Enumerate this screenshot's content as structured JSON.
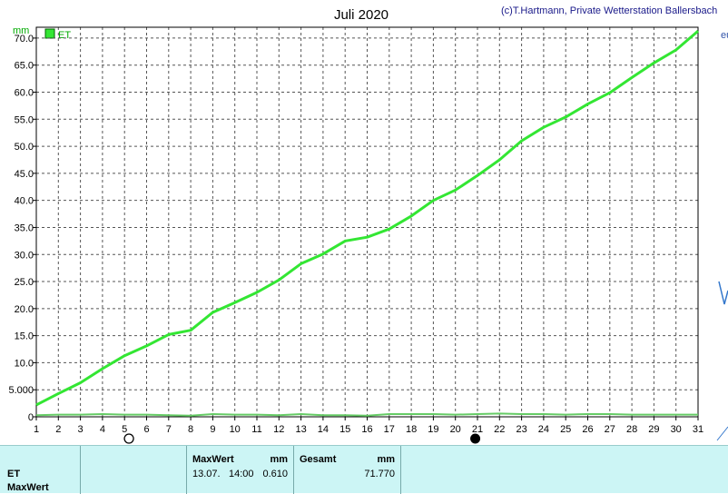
{
  "title": "Juli 2020",
  "copyright": "(c)T.Hartmann, Private Wetterstation Ballersbach",
  "colors": {
    "series": "#33e633",
    "low_series": "#66cc66",
    "axis_unit": "#00aa00",
    "footer_bg": "#ccf5f5"
  },
  "chart_data": {
    "type": "line",
    "title": "Juli 2020",
    "ylabel": "mm",
    "ylim": [
      0,
      72
    ],
    "xlim": [
      1,
      31
    ],
    "grid": true,
    "legend": {
      "entries": [
        "ET"
      ],
      "placement": "top-left"
    },
    "y_ticks": [
      {
        "v": 0,
        "label": "0"
      },
      {
        "v": 5,
        "label": "5.000"
      },
      {
        "v": 10,
        "label": "10.0"
      },
      {
        "v": 15,
        "label": "15.0"
      },
      {
        "v": 20,
        "label": "20.0"
      },
      {
        "v": 25,
        "label": "25.0"
      },
      {
        "v": 30,
        "label": "30.0"
      },
      {
        "v": 35,
        "label": "35.0"
      },
      {
        "v": 40,
        "label": "40.0"
      },
      {
        "v": 45,
        "label": "45.0"
      },
      {
        "v": 50,
        "label": "50.0"
      },
      {
        "v": 55,
        "label": "55.0"
      },
      {
        "v": 60,
        "label": "60.0"
      },
      {
        "v": 65,
        "label": "65.0"
      },
      {
        "v": 70,
        "label": "70.0"
      }
    ],
    "x_ticks": [
      "1",
      "2",
      "3",
      "4",
      "5",
      "6",
      "7",
      "8",
      "9",
      "10",
      "11",
      "12",
      "13",
      "14",
      "15",
      "16",
      "17",
      "18",
      "19",
      "20",
      "21",
      "22",
      "23",
      "24",
      "25",
      "26",
      "27",
      "28",
      "29",
      "30",
      "31"
    ],
    "series": [
      {
        "name": "ET",
        "x": [
          1,
          2,
          3,
          4,
          5,
          6,
          7,
          8,
          9,
          10,
          11,
          12,
          13,
          14,
          15,
          16,
          17,
          18,
          19,
          20,
          21,
          22,
          23,
          24,
          25,
          26,
          27,
          28,
          29,
          30,
          31
        ],
        "values": [
          2.2,
          4.3,
          6.3,
          8.9,
          11.3,
          13.1,
          15.2,
          16.0,
          19.3,
          21.1,
          23.0,
          25.3,
          28.3,
          30.1,
          32.5,
          33.2,
          34.7,
          37.1,
          40.0,
          41.9,
          44.6,
          47.5,
          51.0,
          53.5,
          55.4,
          57.8,
          59.9,
          62.7,
          65.4,
          67.8,
          71.3
        ]
      },
      {
        "name": "",
        "x": [
          1,
          2,
          3,
          4,
          5,
          6,
          7,
          8,
          9,
          10,
          11,
          12,
          13,
          14,
          15,
          16,
          17,
          18,
          19,
          20,
          21,
          22,
          23,
          24,
          25,
          26,
          27,
          28,
          29,
          30,
          31
        ],
        "values": [
          0.3,
          0.4,
          0.4,
          0.5,
          0.4,
          0.4,
          0.3,
          0.2,
          0.5,
          0.4,
          0.4,
          0.3,
          0.5,
          0.3,
          0.3,
          0.2,
          0.5,
          0.5,
          0.5,
          0.4,
          0.5,
          0.6,
          0.5,
          0.5,
          0.4,
          0.5,
          0.5,
          0.4,
          0.4,
          0.4,
          0.4
        ]
      }
    ],
    "moon_phases": [
      {
        "day": 5.2,
        "phase": "full-moon"
      },
      {
        "day": 20.9,
        "phase": "new-moon"
      }
    ]
  },
  "footer": {
    "row_labels": [
      "ET",
      "MaxWert"
    ],
    "maxwert": {
      "header": "MaxWert",
      "unit": "mm",
      "date": "13.07.",
      "time": "14:00",
      "value": "0.610"
    },
    "gesamt": {
      "header": "Gesamt",
      "unit": "mm",
      "value": "71.770"
    }
  }
}
